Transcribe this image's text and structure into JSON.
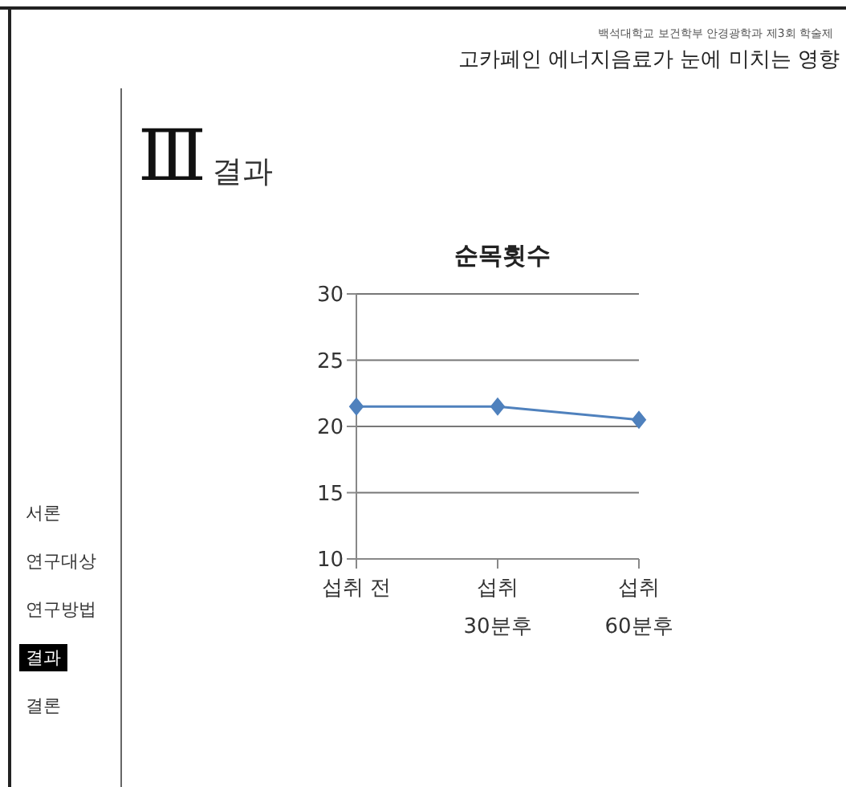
{
  "chart_data": {
    "type": "line",
    "title": "순목횟수",
    "categories": [
      "섭취 전",
      "섭취\n30분후",
      "섭취\n60분후"
    ],
    "series": [
      {
        "color": "#4f81bd",
        "values": [
          21.5,
          21.5,
          20.5
        ]
      }
    ],
    "ylim": [
      10,
      30
    ],
    "yticks": [
      10,
      15,
      20,
      25,
      30
    ],
    "grid": "y",
    "legend": false,
    "marker": "diamond",
    "line_style": "solid",
    "annotations": [
      "백석대학교 보건학부 안경광학과 제3회 학술제",
      "고카페인 에너지음료가 눈에 미치는 영향",
      "Ⅲ",
      "결과",
      "서론",
      "연구대상",
      "연구방법",
      "결과",
      "결론"
    ]
  }
}
